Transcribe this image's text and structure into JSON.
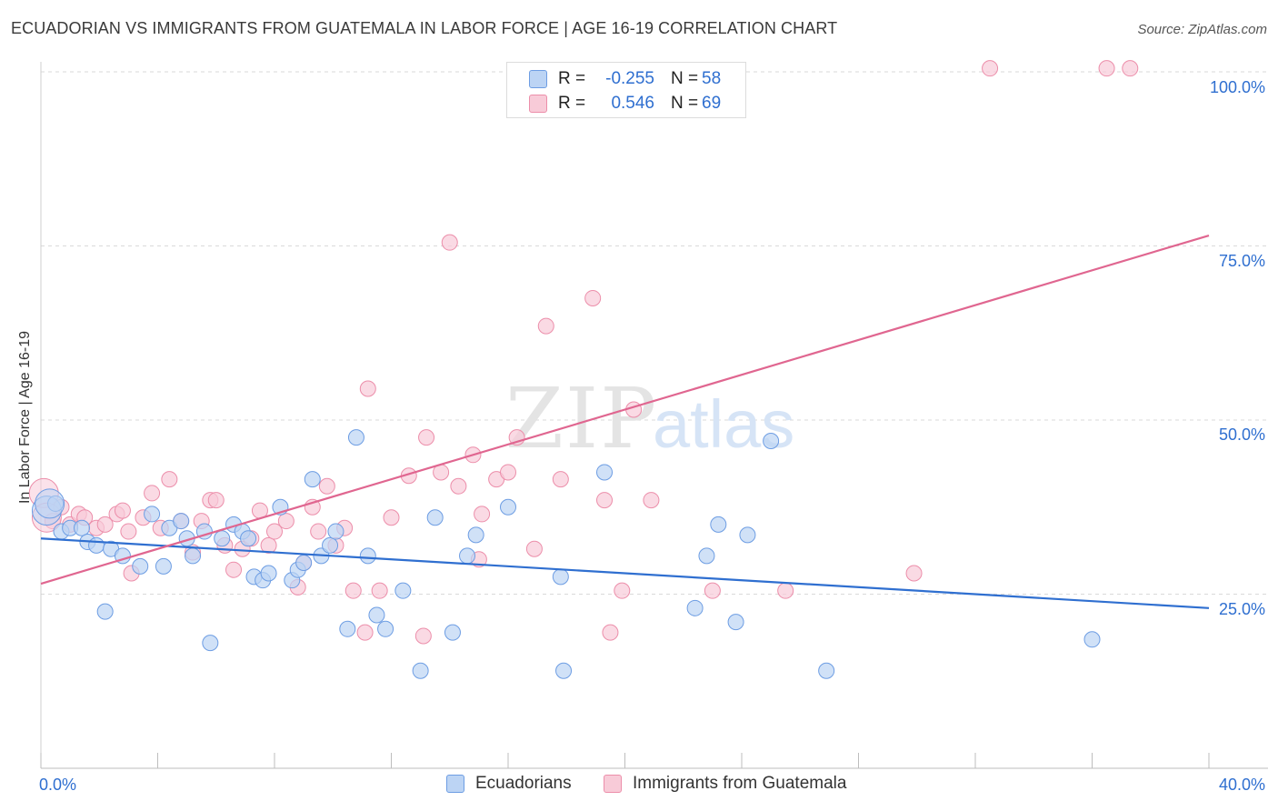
{
  "header": {
    "title": "ECUADORIAN VS IMMIGRANTS FROM GUATEMALA IN LABOR FORCE | AGE 16-19 CORRELATION CHART",
    "source": "Source: ZipAtlas.com"
  },
  "watermark": {
    "text_zip": "ZIP",
    "text_atlas": "atlas"
  },
  "legend_top": {
    "r_label": "R =",
    "n_label": "N =",
    "series": [
      {
        "name": "Ecuadorians",
        "r": "-0.255",
        "n": "58"
      },
      {
        "name": "Immigrants from Guatemala",
        "r": "0.546",
        "n": "69"
      }
    ]
  },
  "legend_bottom": {
    "items": [
      "Ecuadorians",
      "Immigrants from Guatemala"
    ]
  },
  "colors": {
    "blue_fill": "#bcd4f4",
    "blue_stroke": "#6d9de3",
    "blue_line": "#2f6fd0",
    "pink_fill": "#f8cbd8",
    "pink_stroke": "#ec8eaa",
    "pink_line": "#e06690",
    "grid": "#d9d9d9",
    "axis_text": "#2f6fd0"
  },
  "chart_data": {
    "type": "scatter",
    "title": "ECUADORIAN VS IMMIGRANTS FROM GUATEMALA IN LABOR FORCE | AGE 16-19 CORRELATION CHART",
    "xlabel": "",
    "ylabel": "In Labor Force | Age 16-19",
    "xlim": [
      0,
      40
    ],
    "ylim": [
      0,
      100
    ],
    "x_tick_labels": [
      "0.0%",
      "40.0%"
    ],
    "y_ticks": [
      25,
      50,
      75,
      100
    ],
    "y_tick_labels": [
      "25.0%",
      "50.0%",
      "75.0%",
      "100.0%"
    ],
    "grid": true,
    "legend_position": "bottom",
    "series": [
      {
        "name": "Ecuadorians",
        "r": -0.255,
        "n": 58,
        "trend": {
          "x0": 0,
          "y0": 33.0,
          "x1": 40,
          "y1": 23.0
        },
        "points": [
          [
            0.2,
            37.0
          ],
          [
            0.5,
            38.0
          ],
          [
            0.7,
            34.0
          ],
          [
            1.0,
            34.5
          ],
          [
            1.4,
            34.5
          ],
          [
            1.6,
            32.5
          ],
          [
            1.9,
            32.0
          ],
          [
            2.4,
            31.5
          ],
          [
            2.2,
            22.5
          ],
          [
            2.8,
            30.5
          ],
          [
            3.4,
            29.0
          ],
          [
            3.8,
            36.5
          ],
          [
            4.2,
            29.0
          ],
          [
            4.4,
            34.5
          ],
          [
            4.8,
            35.5
          ],
          [
            5.0,
            33.0
          ],
          [
            5.2,
            30.5
          ],
          [
            5.6,
            34.0
          ],
          [
            5.8,
            18.0
          ],
          [
            6.2,
            33.0
          ],
          [
            6.6,
            35.0
          ],
          [
            6.9,
            34.0
          ],
          [
            7.1,
            33.0
          ],
          [
            7.3,
            27.5
          ],
          [
            7.6,
            27.0
          ],
          [
            7.8,
            28.0
          ],
          [
            8.2,
            37.5
          ],
          [
            8.6,
            27.0
          ],
          [
            8.8,
            28.5
          ],
          [
            9.0,
            29.5
          ],
          [
            9.3,
            41.5
          ],
          [
            9.6,
            30.5
          ],
          [
            9.9,
            32.0
          ],
          [
            10.1,
            34.0
          ],
          [
            10.5,
            20.0
          ],
          [
            10.8,
            47.5
          ],
          [
            11.2,
            30.5
          ],
          [
            11.5,
            22.0
          ],
          [
            11.8,
            20.0
          ],
          [
            12.4,
            25.5
          ],
          [
            13.0,
            14.0
          ],
          [
            13.5,
            36.0
          ],
          [
            14.1,
            19.5
          ],
          [
            14.6,
            30.5
          ],
          [
            14.9,
            33.5
          ],
          [
            16.0,
            37.5
          ],
          [
            17.8,
            27.5
          ],
          [
            17.9,
            14.0
          ],
          [
            19.3,
            42.5
          ],
          [
            22.4,
            23.0
          ],
          [
            22.8,
            30.5
          ],
          [
            23.2,
            35.0
          ],
          [
            23.8,
            21.0
          ],
          [
            24.2,
            33.5
          ],
          [
            25.0,
            47.0
          ],
          [
            26.9,
            14.0
          ],
          [
            36.0,
            18.5
          ],
          [
            0.3,
            38.0
          ]
        ]
      },
      {
        "name": "Immigrants from Guatemala",
        "r": 0.546,
        "n": 69,
        "trend": {
          "x0": 0,
          "y0": 26.5,
          "x1": 40,
          "y1": 76.5
        },
        "points": [
          [
            0.1,
            39.5
          ],
          [
            0.4,
            35.5
          ],
          [
            0.7,
            37.5
          ],
          [
            1.0,
            35.0
          ],
          [
            1.3,
            36.5
          ],
          [
            1.5,
            36.0
          ],
          [
            1.9,
            34.5
          ],
          [
            2.2,
            35.0
          ],
          [
            2.6,
            36.5
          ],
          [
            2.8,
            37.0
          ],
          [
            3.1,
            28.0
          ],
          [
            3.5,
            36.0
          ],
          [
            3.8,
            39.5
          ],
          [
            4.1,
            34.5
          ],
          [
            4.4,
            41.5
          ],
          [
            4.8,
            35.5
          ],
          [
            5.2,
            31.0
          ],
          [
            5.5,
            35.5
          ],
          [
            5.8,
            38.5
          ],
          [
            6.0,
            38.5
          ],
          [
            6.3,
            32.0
          ],
          [
            6.6,
            28.5
          ],
          [
            6.9,
            31.5
          ],
          [
            7.2,
            33.0
          ],
          [
            7.5,
            37.0
          ],
          [
            7.8,
            32.0
          ],
          [
            8.0,
            34.0
          ],
          [
            8.4,
            35.5
          ],
          [
            8.8,
            26.0
          ],
          [
            9.0,
            29.5
          ],
          [
            9.3,
            37.5
          ],
          [
            9.5,
            34.0
          ],
          [
            9.8,
            40.5
          ],
          [
            10.1,
            32.0
          ],
          [
            10.4,
            34.5
          ],
          [
            10.7,
            25.5
          ],
          [
            11.1,
            19.5
          ],
          [
            11.2,
            54.5
          ],
          [
            11.6,
            25.5
          ],
          [
            12.0,
            36.0
          ],
          [
            12.6,
            42.0
          ],
          [
            13.1,
            19.0
          ],
          [
            13.2,
            47.5
          ],
          [
            13.7,
            42.5
          ],
          [
            14.0,
            75.5
          ],
          [
            14.3,
            40.5
          ],
          [
            14.8,
            45.0
          ],
          [
            15.0,
            30.0
          ],
          [
            15.1,
            36.5
          ],
          [
            15.6,
            41.5
          ],
          [
            16.0,
            42.5
          ],
          [
            16.3,
            47.5
          ],
          [
            16.9,
            31.5
          ],
          [
            17.3,
            63.5
          ],
          [
            17.8,
            41.5
          ],
          [
            18.9,
            67.5
          ],
          [
            19.3,
            38.5
          ],
          [
            19.5,
            19.5
          ],
          [
            19.9,
            25.5
          ],
          [
            20.3,
            51.5
          ],
          [
            20.9,
            38.5
          ],
          [
            23.0,
            25.5
          ],
          [
            25.5,
            25.5
          ],
          [
            29.9,
            28.0
          ],
          [
            32.5,
            100.5
          ],
          [
            36.5,
            100.5
          ],
          [
            37.3,
            100.5
          ],
          [
            0.2,
            36.0
          ],
          [
            3.0,
            34.0
          ]
        ]
      }
    ]
  }
}
